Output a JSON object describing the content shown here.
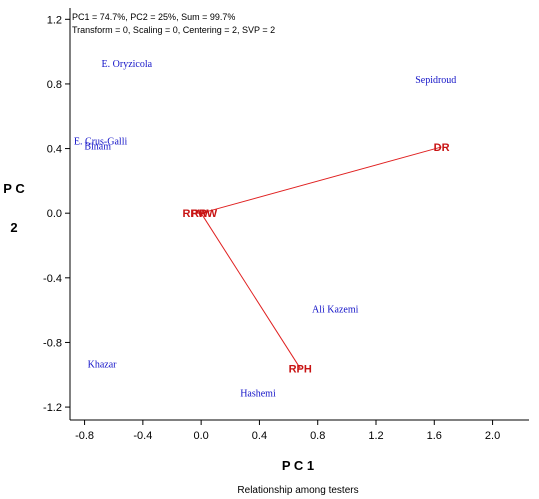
{
  "chart_data": {
    "type": "scatter",
    "title": "",
    "info_lines": [
      "PC1 = 74.7%, PC2 = 25%, Sum = 99.7%",
      "Transform = 0, Scaling = 0, Centering = 2, SVP = 2"
    ],
    "xlabel": "P C 1",
    "ylabel": "P C 2",
    "caption": "Relationship among testers",
    "xlim": [
      -0.9,
      2.25
    ],
    "ylim": [
      -1.28,
      1.27
    ],
    "x_ticks": [
      -0.8,
      -0.4,
      0.0,
      0.4,
      0.8,
      1.2,
      1.6,
      2.0
    ],
    "x_tick_labels": [
      "-0.8",
      "-0.4",
      "0.0",
      "0.4",
      "0.8",
      "1.2",
      "1.6",
      "2.0"
    ],
    "y_ticks": [
      1.2,
      0.8,
      0.4,
      0.0,
      -0.4,
      -0.8,
      -1.2
    ],
    "y_tick_labels": [
      "1.2",
      "0.8",
      "0.4",
      "0.0",
      "-0.4",
      "-0.8",
      "-1.2"
    ],
    "entries": [
      {
        "label": "E. Oryzicola",
        "x": -0.51,
        "y": 0.93
      },
      {
        "label": "Sepidroud",
        "x": 1.61,
        "y": 0.83
      },
      {
        "label": "E. Crus-Galli",
        "x": -0.69,
        "y": 0.45
      },
      {
        "label": "Binam",
        "x": -0.71,
        "y": 0.42
      },
      {
        "label": "Ali Kazemi",
        "x": 0.92,
        "y": -0.59
      },
      {
        "label": "Khazar",
        "x": -0.68,
        "y": -0.93
      },
      {
        "label": "Hashemi",
        "x": 0.39,
        "y": -1.11
      }
    ],
    "testers": [
      {
        "label": "DR",
        "x": 1.65,
        "y": 0.41
      },
      {
        "label": "RPW",
        "x": -0.04,
        "y": 0.0
      },
      {
        "label": "RRW",
        "x": 0.02,
        "y": 0.0
      },
      {
        "label": "RPH",
        "x": 0.68,
        "y": -0.96
      }
    ],
    "vector_origin": {
      "x": 0.0,
      "y": 0.0
    },
    "colors": {
      "entry": "#1414c8",
      "tester": "#c81414",
      "vector": "#e02020",
      "axis": "#000000"
    }
  }
}
